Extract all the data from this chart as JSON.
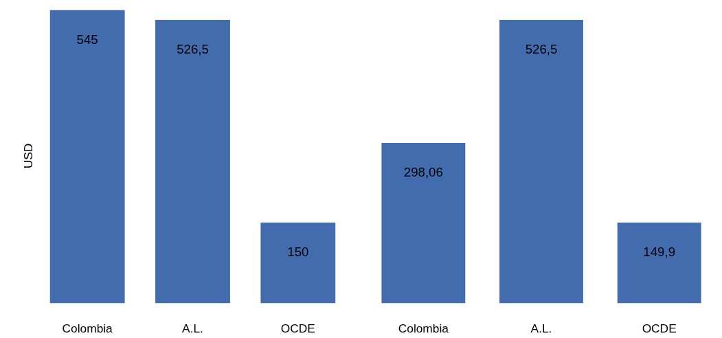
{
  "chart_data": [
    {
      "type": "bar",
      "ylabel": "USD",
      "categories": [
        "Colombia",
        "A.L.",
        "OCDE"
      ],
      "values": [
        545,
        526.5,
        150
      ],
      "value_labels": [
        "545",
        "526,5",
        "150"
      ],
      "color": "#426cae"
    },
    {
      "type": "bar",
      "categories": [
        "Colombia",
        "A.L.",
        "OCDE"
      ],
      "values": [
        298.06,
        526.5,
        149.9
      ],
      "value_labels": [
        "298,06",
        "526,5",
        "149,9"
      ],
      "color": "#426cae"
    }
  ]
}
